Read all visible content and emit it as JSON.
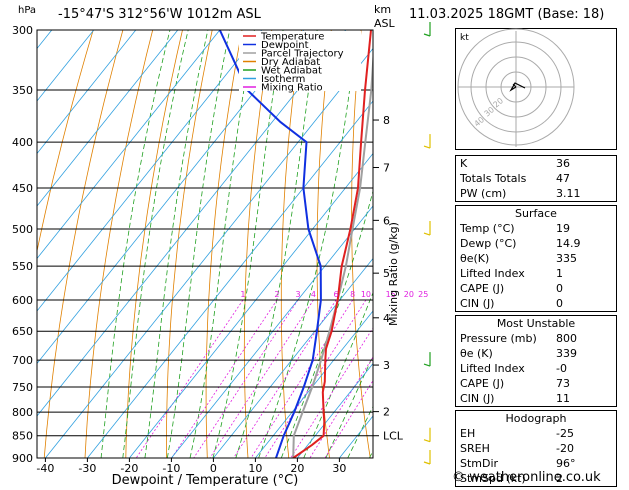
{
  "header": {
    "hpa_label": "hPa",
    "location": "-15°47'S 312°56'W 1012m ASL",
    "km_label": "km",
    "asl_label": "ASL",
    "datetime": "11.03.2025 18GMT (Base: 18)"
  },
  "chart_data": {
    "type": "skew-t",
    "xlabel": "Dewpoint / Temperature (°C)",
    "ylabel_right": "Mixing Ratio (g/kg)",
    "x_ticks": [
      -40,
      -30,
      -20,
      -10,
      0,
      10,
      20,
      30
    ],
    "pressure_ticks": [
      300,
      350,
      400,
      450,
      500,
      550,
      600,
      650,
      700,
      750,
      800,
      850,
      900
    ],
    "x_range": [
      -42,
      38
    ],
    "pressure_range": [
      300,
      900
    ],
    "legend": [
      {
        "name": "Temperature",
        "color": "#e02020"
      },
      {
        "name": "Dewpoint",
        "color": "#1030e0"
      },
      {
        "name": "Parcel Trajectory",
        "color": "#a0a0a0"
      },
      {
        "name": "Dry Adiabat",
        "color": "#e08000"
      },
      {
        "name": "Wet Adiabat",
        "color": "#20a020"
      },
      {
        "name": "Isotherm",
        "color": "#30a0e0"
      },
      {
        "name": "Mixing Ratio",
        "color": "#e020e0"
      }
    ],
    "km_ticks": [
      {
        "km": "8",
        "p": 378
      },
      {
        "km": "7",
        "p": 427
      },
      {
        "km": "6",
        "p": 489
      },
      {
        "km": "5",
        "p": 560
      },
      {
        "km": "4",
        "p": 628
      },
      {
        "km": "3",
        "p": 709
      },
      {
        "km": "2",
        "p": 799
      },
      {
        "km": "LCL",
        "p": 850
      }
    ],
    "mixing_ratio_labels": [
      "1",
      "2",
      "3",
      "4",
      "6",
      "8",
      "10",
      "15",
      "20",
      "25"
    ],
    "mixing_ratio_label_p": 600,
    "temperature": {
      "p": [
        900,
        870,
        850,
        820,
        800,
        760,
        740,
        700,
        680,
        650,
        600,
        550,
        500,
        450,
        400,
        350,
        300
      ],
      "t": [
        19,
        21,
        22,
        19.5,
        17.5,
        13.5,
        12,
        8,
        6,
        4,
        -0.5,
        -6,
        -11,
        -17,
        -25,
        -34,
        -44
      ]
    },
    "dewpoint": {
      "p": [
        900,
        850,
        800,
        750,
        700,
        650,
        600,
        550,
        500,
        450,
        400,
        380,
        350,
        300
      ],
      "t": [
        14.9,
        12.5,
        10.5,
        8,
        5,
        0.5,
        -4.5,
        -11,
        -21,
        -30,
        -38,
        -48,
        -62,
        -80
      ]
    },
    "parcel": {
      "p": [
        900,
        850,
        800,
        750,
        700,
        650,
        600,
        550,
        500,
        450,
        400,
        350,
        300
      ],
      "t": [
        19,
        14.9,
        12.5,
        10,
        7,
        3.5,
        -0.5,
        -5,
        -10.5,
        -16.5,
        -24,
        -32.5,
        -43
      ]
    }
  },
  "hodograph": {
    "unit_label": "kt",
    "ring_labels": [
      "40",
      "30",
      "20"
    ]
  },
  "stats": {
    "indices": [
      {
        "label": "K",
        "value": "36"
      },
      {
        "label": "Totals Totals",
        "value": "47"
      },
      {
        "label": "PW (cm)",
        "value": "3.11"
      }
    ],
    "surface": {
      "title": "Surface",
      "rows": [
        {
          "label": "Temp (°C)",
          "value": "19"
        },
        {
          "label": "Dewp (°C)",
          "value": "14.9"
        },
        {
          "label": "θe(K)",
          "value": "335"
        },
        {
          "label": "Lifted Index",
          "value": "1"
        },
        {
          "label": "CAPE (J)",
          "value": "0"
        },
        {
          "label": "CIN (J)",
          "value": "0"
        }
      ]
    },
    "unstable": {
      "title": "Most Unstable",
      "rows": [
        {
          "label": "Pressure (mb)",
          "value": "800"
        },
        {
          "label": "θe (K)",
          "value": "339"
        },
        {
          "label": "Lifted Index",
          "value": "-0"
        },
        {
          "label": "CAPE (J)",
          "value": "73"
        },
        {
          "label": "CIN (J)",
          "value": "11"
        }
      ]
    },
    "hodograph": {
      "title": "Hodograph",
      "rows": [
        {
          "label": "EH",
          "value": "-25"
        },
        {
          "label": "SREH",
          "value": "-20"
        },
        {
          "label": "StmDir",
          "value": "96°"
        },
        {
          "label": "StmSpd (kt)",
          "value": "2"
        }
      ]
    }
  },
  "footer": {
    "copyright": "© weatheronline.co.uk"
  }
}
